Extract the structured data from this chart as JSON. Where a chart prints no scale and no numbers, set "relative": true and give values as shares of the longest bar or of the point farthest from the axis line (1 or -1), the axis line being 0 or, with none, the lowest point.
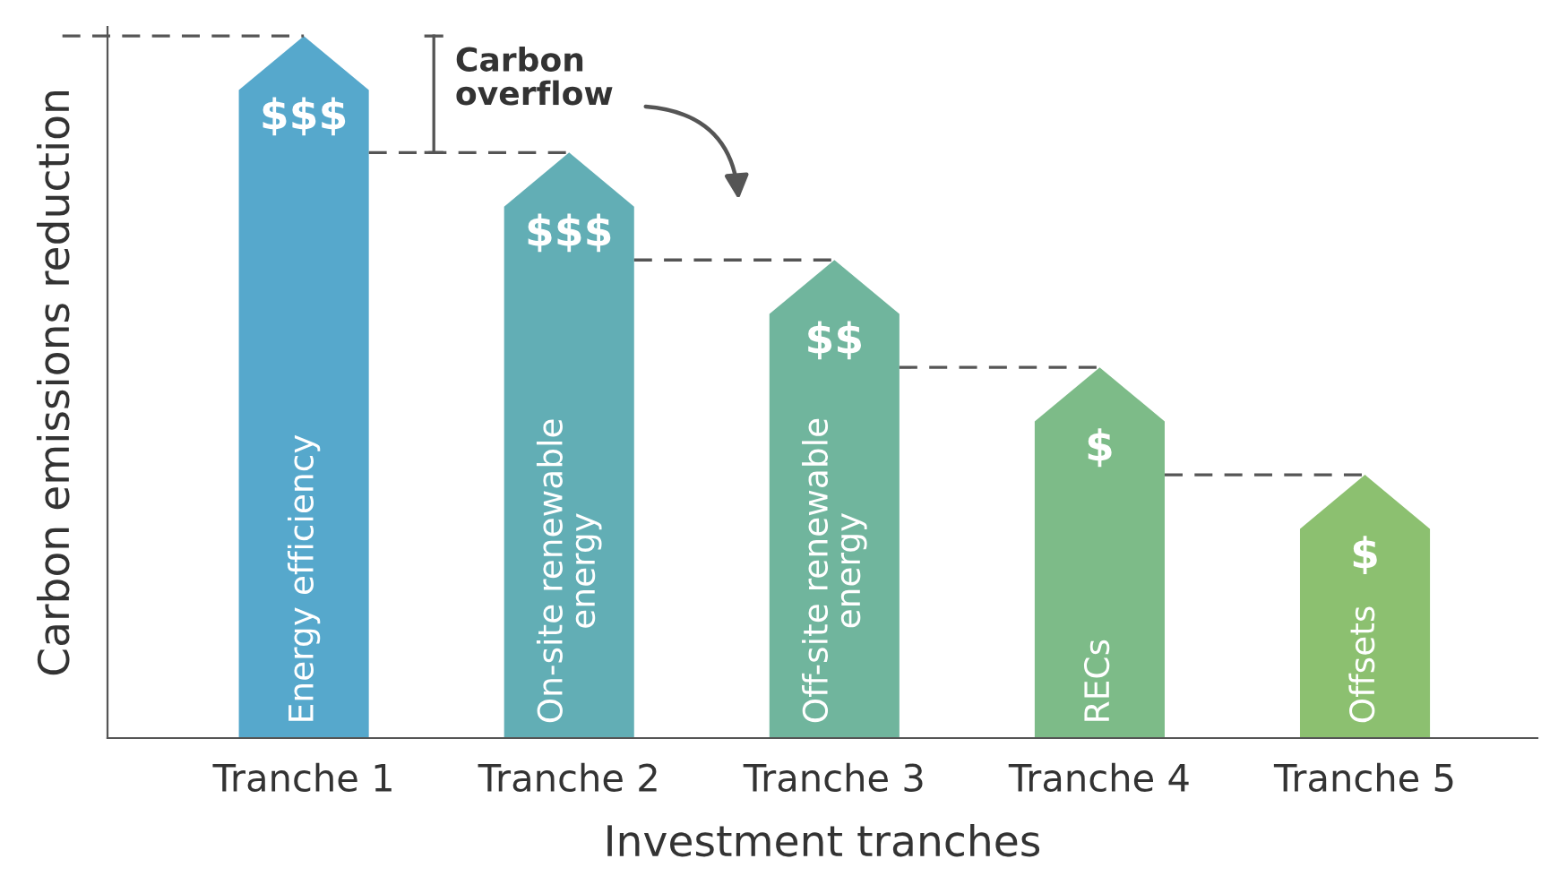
{
  "chart_data": {
    "type": "bar",
    "relative": true,
    "xlabel": "Investment tranches",
    "ylabel": "Carbon emissions reduction",
    "categories": [
      "Tranche 1",
      "Tranche 2",
      "Tranche 3",
      "Tranche 4",
      "Tranche 5"
    ],
    "values": [
      1,
      0.834,
      0.681,
      0.528,
      0.375
    ],
    "colors": [
      "#56a8cc",
      "#62aeb5",
      "#70b59d",
      "#7dbb88",
      "#8cc070"
    ],
    "grid": false,
    "annotations": [
      {
        "text": "$$$",
        "x": "Tranche 1",
        "y": 1
      },
      {
        "text": "$$$",
        "x": "Tranche 2",
        "y": 0.834
      },
      {
        "text": "$$",
        "x": "Tranche 3",
        "y": 0.681
      },
      {
        "text": "$",
        "x": "Tranche 4",
        "y": 0.528
      },
      {
        "text": "$",
        "x": "Tranche 5",
        "y": 0.375
      },
      {
        "text": "Energy efficiency",
        "x": "Tranche 1",
        "y": 0
      },
      {
        "text": "On-site renewable\nenergy",
        "x": "Tranche 2",
        "y": 0
      },
      {
        "text": "Off-site renewable\nenergy",
        "x": "Tranche 3",
        "y": 0
      },
      {
        "text": "RECs",
        "x": "Tranche 4",
        "y": 0
      },
      {
        "text": "Offsets",
        "x": "Tranche 5",
        "y": 0
      },
      "Carbon\noverflow"
    ]
  }
}
